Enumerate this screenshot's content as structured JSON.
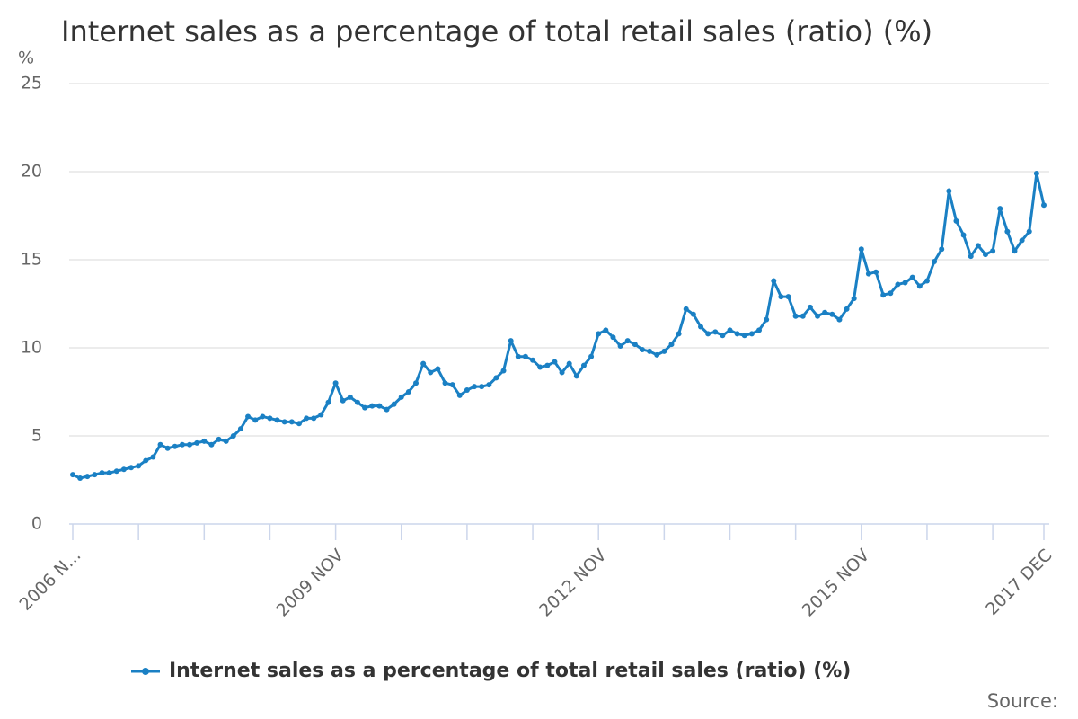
{
  "chart_data": {
    "type": "line",
    "title": "Internet sales as a percentage of total retail sales (ratio) (%)",
    "y_label": "%",
    "source": "Source:",
    "categories": [
      "2006 N...",
      null,
      null,
      null,
      null,
      null,
      null,
      null,
      null,
      null,
      null,
      null,
      null,
      null,
      null,
      null,
      null,
      null,
      null,
      null,
      null,
      null,
      null,
      null,
      null,
      null,
      null,
      null,
      null,
      null,
      null,
      null,
      null,
      null,
      null,
      null,
      "2009 NOV",
      null,
      null,
      null,
      null,
      null,
      null,
      null,
      null,
      null,
      null,
      null,
      null,
      null,
      null,
      null,
      null,
      null,
      null,
      null,
      null,
      null,
      null,
      null,
      null,
      null,
      null,
      null,
      null,
      null,
      null,
      null,
      null,
      null,
      null,
      null,
      "2012 NOV",
      null,
      null,
      null,
      null,
      null,
      null,
      null,
      null,
      null,
      null,
      null,
      null,
      null,
      null,
      null,
      null,
      null,
      null,
      null,
      null,
      null,
      null,
      null,
      null,
      null,
      null,
      null,
      null,
      null,
      null,
      null,
      null,
      null,
      null,
      null,
      "2015 NOV",
      null,
      null,
      null,
      null,
      null,
      null,
      null,
      null,
      null,
      null,
      null,
      null,
      null,
      null,
      null,
      null,
      null,
      null,
      null,
      null,
      null,
      null,
      null,
      null,
      "2017 DEC"
    ],
    "series": [
      {
        "name": "Internet sales as a percentage of total retail sales (ratio) (%)",
        "color": "#1a80c4",
        "values": [
          2.8,
          2.6,
          2.7,
          2.8,
          2.9,
          2.9,
          3.0,
          3.1,
          3.2,
          3.3,
          3.6,
          3.8,
          4.5,
          4.3,
          4.4,
          4.5,
          4.5,
          4.6,
          4.7,
          4.5,
          4.8,
          4.7,
          5.0,
          5.4,
          6.1,
          5.9,
          6.1,
          6.0,
          5.9,
          5.8,
          5.8,
          5.7,
          6.0,
          6.0,
          6.2,
          6.9,
          8.0,
          7.0,
          7.2,
          6.9,
          6.6,
          6.7,
          6.7,
          6.5,
          6.8,
          7.2,
          7.5,
          8.0,
          9.1,
          8.6,
          8.8,
          8.0,
          7.9,
          7.3,
          7.6,
          7.8,
          7.8,
          7.9,
          8.3,
          8.7,
          10.4,
          9.5,
          9.5,
          9.3,
          8.9,
          9.0,
          9.2,
          8.6,
          9.1,
          8.4,
          9.0,
          9.5,
          10.8,
          11.0,
          10.6,
          10.1,
          10.4,
          10.2,
          9.9,
          9.8,
          9.6,
          9.8,
          10.2,
          10.8,
          12.2,
          11.9,
          11.2,
          10.8,
          10.9,
          10.7,
          11.0,
          10.8,
          10.7,
          10.8,
          11.0,
          11.6,
          13.8,
          12.9,
          12.9,
          11.8,
          11.8,
          12.3,
          11.8,
          12.0,
          11.9,
          11.6,
          12.2,
          12.8,
          15.6,
          14.2,
          14.3,
          13.0,
          13.1,
          13.6,
          13.7,
          14.0,
          13.5,
          13.8,
          14.9,
          15.6,
          18.9,
          17.2,
          16.4,
          15.2,
          15.8,
          15.3,
          15.5,
          17.9,
          16.6,
          15.5,
          16.1,
          16.6,
          19.9,
          18.1
        ]
      }
    ],
    "ylim": [
      0,
      25
    ],
    "yticks": [
      0,
      5,
      10,
      15,
      20,
      25
    ],
    "grid": true
  }
}
